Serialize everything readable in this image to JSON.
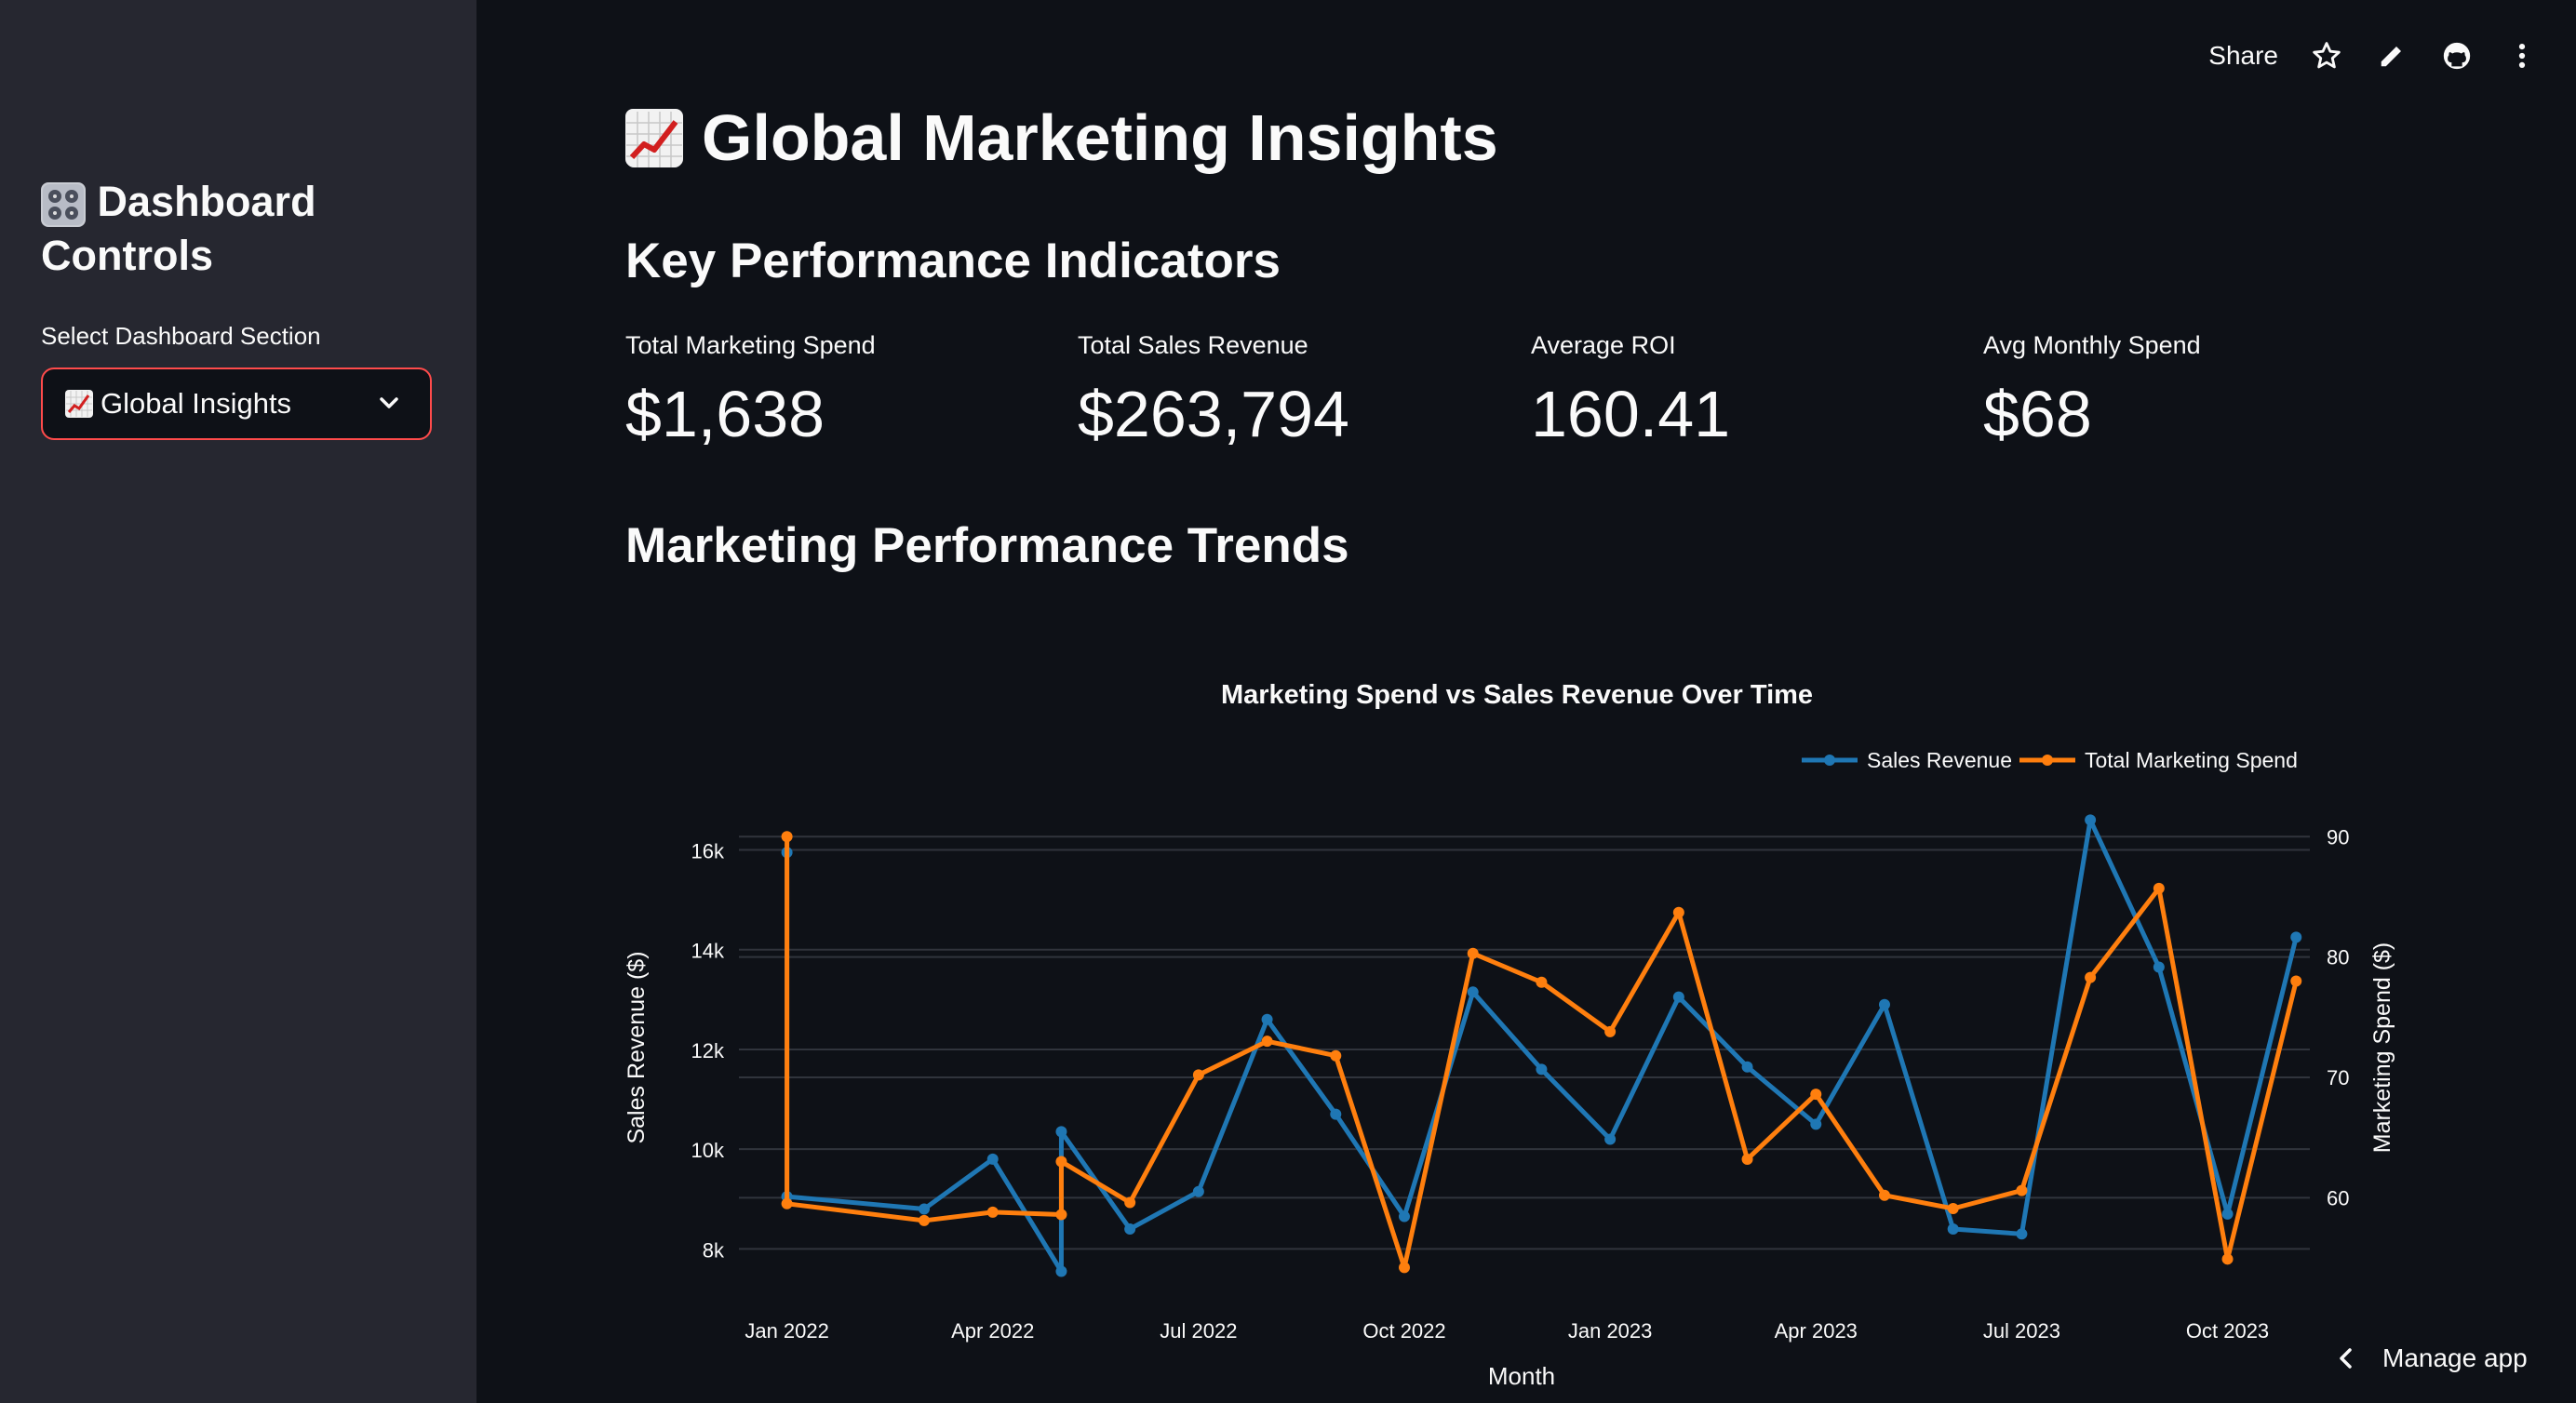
{
  "sidebar": {
    "title_line1": "Dashboard",
    "title_line2": "Controls",
    "select_label": "Select Dashboard Section",
    "select_value": "Global Insights"
  },
  "topbar": {
    "share_label": "Share"
  },
  "main": {
    "title": "Global Marketing Insights",
    "kpi_heading": "Key Performance Indicators",
    "trends_heading": "Marketing Performance Trends",
    "kpis": [
      {
        "label": "Total Marketing Spend",
        "value": "$1,638"
      },
      {
        "label": "Total Sales Revenue",
        "value": "$263,794"
      },
      {
        "label": "Average ROI",
        "value": "160.41"
      },
      {
        "label": "Avg Monthly Spend",
        "value": "$68"
      }
    ]
  },
  "footer": {
    "manage_label": "Manage app"
  },
  "colors": {
    "revenue": "#1f77b4",
    "spend": "#ff7f0e",
    "accent": "#ff4b4b"
  },
  "chart_data": {
    "type": "line",
    "title": "Marketing Spend vs Sales Revenue Over Time",
    "xlabel": "Month",
    "ylabel": "Sales Revenue ($)",
    "y2label": "Marketing Spend ($)",
    "legend_position": "top-right",
    "x_tick_labels": [
      "Jan 2022",
      "Apr 2022",
      "Jul 2022",
      "Oct 2022",
      "Jan 2023",
      "Apr 2023",
      "Jul 2023",
      "Oct 2023"
    ],
    "x_tick_positions": [
      0,
      3,
      6,
      9,
      12,
      15,
      18,
      21
    ],
    "xlim": [
      -0.7,
      22.2
    ],
    "ylim": [
      7000,
      16700
    ],
    "y_ticks": [
      8000,
      10000,
      12000,
      14000,
      16000
    ],
    "y_tick_labels": [
      "8k",
      "10k",
      "12k",
      "14k",
      "16k"
    ],
    "y2lim": [
      51.6,
      91.8
    ],
    "y2_ticks": [
      60,
      70,
      80,
      90
    ],
    "y2_tick_labels": [
      "60",
      "70",
      "80",
      "90"
    ],
    "series": [
      {
        "name": "Sales Revenue",
        "axis": "y",
        "color": "#1f77b4",
        "x": [
          0,
          0,
          2,
          3,
          4,
          4,
          5,
          6,
          7,
          8,
          9,
          10,
          11,
          12,
          13,
          14,
          15,
          16,
          17,
          18,
          19,
          20,
          21,
          22
        ],
        "y": [
          15950,
          9050,
          8800,
          9800,
          7550,
          10350,
          8400,
          9150,
          12600,
          10700,
          8650,
          13150,
          11600,
          10200,
          13050,
          11650,
          10500,
          12900,
          8400,
          8300,
          16600,
          13650,
          8700,
          14250
        ]
      },
      {
        "name": "Total Marketing Spend",
        "axis": "y2",
        "color": "#ff7f0e",
        "x": [
          0,
          0,
          2,
          3,
          4,
          4,
          5,
          6,
          7,
          8,
          9,
          10,
          11,
          12,
          13,
          14,
          15,
          16,
          17,
          18,
          19,
          20,
          21,
          22
        ],
        "y": [
          90,
          59.5,
          58.1,
          58.8,
          58.6,
          63.0,
          59.6,
          70.2,
          73.0,
          71.8,
          54.2,
          80.3,
          77.9,
          73.8,
          83.7,
          63.2,
          68.6,
          60.2,
          59.1,
          60.6,
          78.3,
          85.7,
          54.9,
          78.0
        ]
      }
    ]
  }
}
